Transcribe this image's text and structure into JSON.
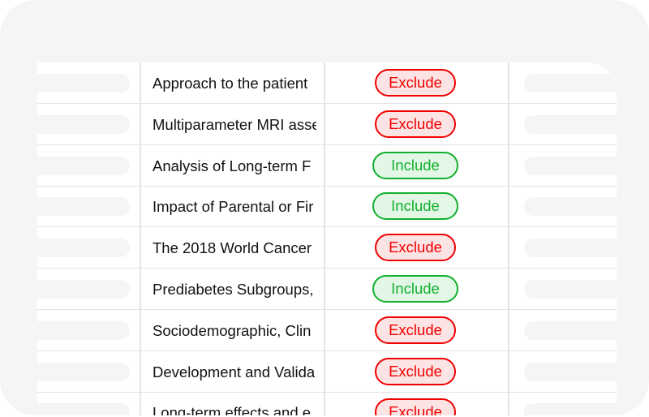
{
  "rows": [
    {
      "title": "Approach to the patient",
      "decision": "Exclude"
    },
    {
      "title": "Multiparameter MRI asse",
      "decision": "Exclude"
    },
    {
      "title": "Analysis of Long-term F",
      "decision": "Include"
    },
    {
      "title": "Impact of Parental or Fir",
      "decision": "Include"
    },
    {
      "title": "The 2018 World Cancer",
      "decision": "Exclude"
    },
    {
      "title": "Prediabetes Subgroups,",
      "decision": "Include"
    },
    {
      "title": "Sociodemographic, Clin",
      "decision": "Exclude"
    },
    {
      "title": "Development and Valida",
      "decision": "Exclude"
    },
    {
      "title": "Long-term effects and e",
      "decision": "Exclude"
    }
  ],
  "colors": {
    "exclude": "#f00000",
    "include": "#12b02e",
    "frame": "#f5f5f5"
  }
}
